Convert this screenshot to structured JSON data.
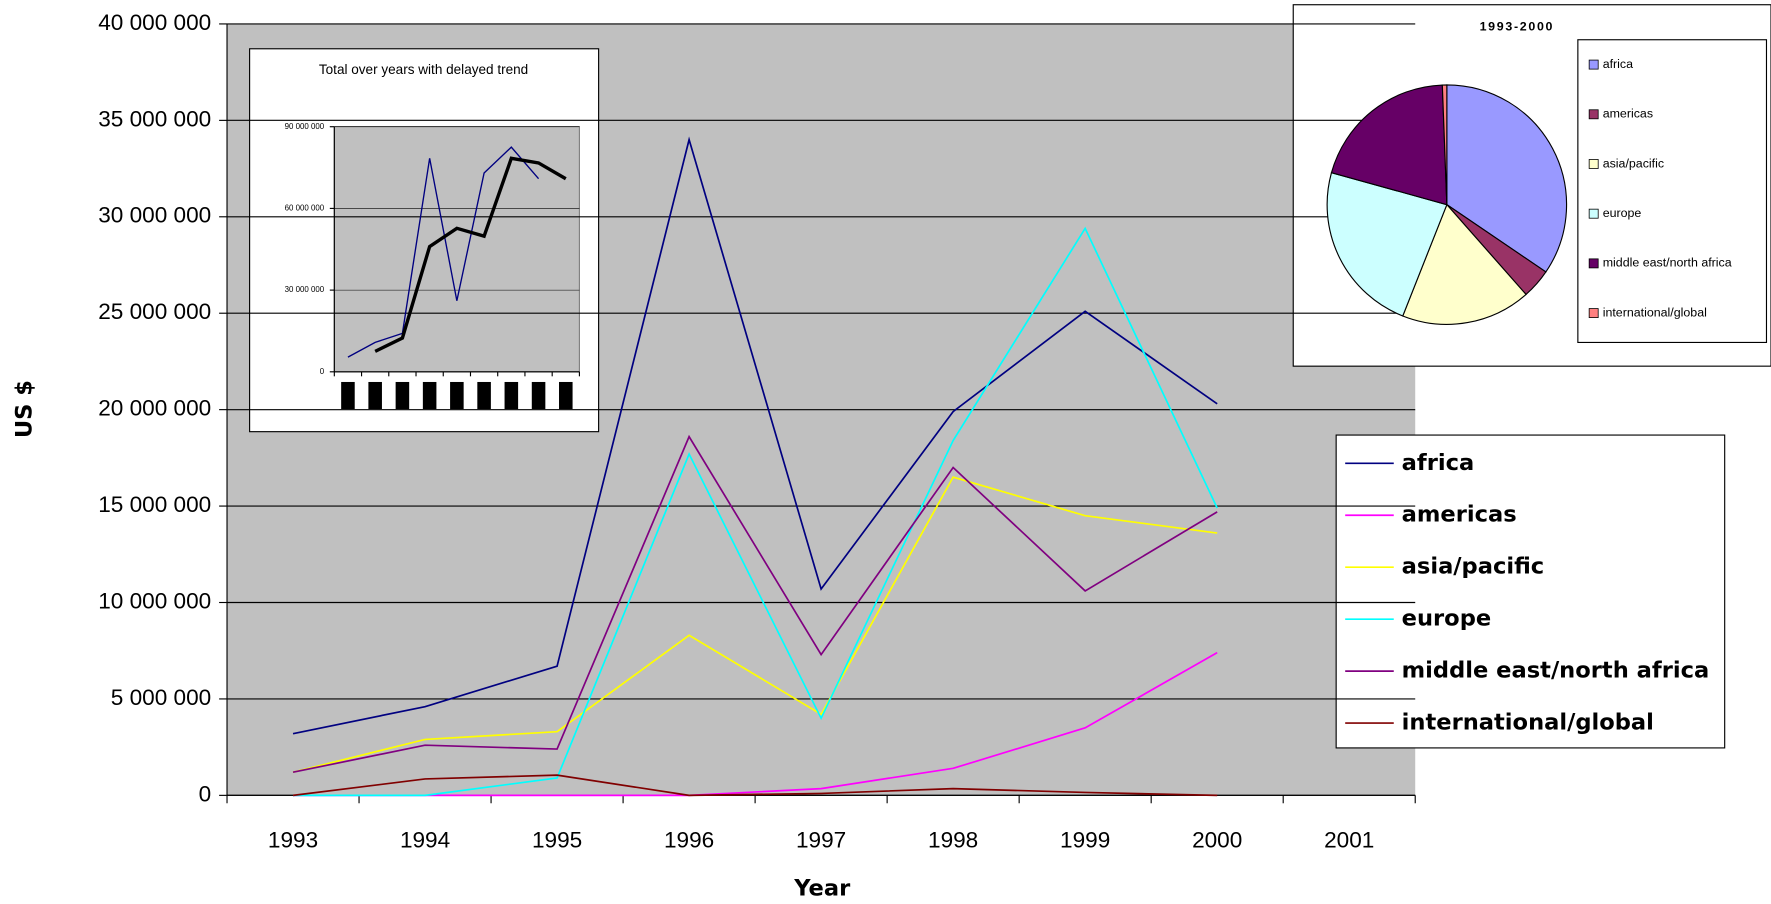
{
  "chart_data": [
    {
      "type": "line",
      "x_label": "Year",
      "y_label": "US $",
      "categories": [
        "1993",
        "1994",
        "1995",
        "1996",
        "1997",
        "1998",
        "1999",
        "2000",
        "2001"
      ],
      "ylim": [
        0,
        40000000
      ],
      "yticks": [
        {
          "value": 0,
          "label": "0"
        },
        {
          "value": 5000000,
          "label": "5 000 000"
        },
        {
          "value": 10000000,
          "label": "10 000 000"
        },
        {
          "value": 15000000,
          "label": "15 000 000"
        },
        {
          "value": 20000000,
          "label": "20 000 000"
        },
        {
          "value": 25000000,
          "label": "25 000 000"
        },
        {
          "value": 30000000,
          "label": "30 000 000"
        },
        {
          "value": 35000000,
          "label": "35 000 000"
        },
        {
          "value": 40000000,
          "label": "40 000 000"
        }
      ],
      "grid": true,
      "series": [
        {
          "name": "africa",
          "color": "#000080",
          "values": [
            3200000,
            4600000,
            6700000,
            34000000,
            10700000,
            19900000,
            25100000,
            20300000,
            null
          ]
        },
        {
          "name": "americas",
          "color": "#ff00ff",
          "values": [
            0,
            0,
            0,
            0,
            350000,
            1400000,
            3500000,
            7400000,
            null
          ]
        },
        {
          "name": "asia/pacific",
          "color": "#ffff00",
          "values": [
            1200000,
            2900000,
            3300000,
            8300000,
            4200000,
            16500000,
            14500000,
            13600000,
            null
          ]
        },
        {
          "name": "europe",
          "color": "#00ffff",
          "values": [
            0,
            0,
            900000,
            17700000,
            4000000,
            18400000,
            29400000,
            14900000,
            null
          ]
        },
        {
          "name": "middle east/north africa",
          "color": "#800080",
          "values": [
            1200000,
            2600000,
            2400000,
            18600000,
            7300000,
            17000000,
            10600000,
            14700000,
            null
          ]
        },
        {
          "name": "international/global",
          "color": "#800000",
          "values": [
            0,
            850000,
            1050000,
            0,
            100000,
            350000,
            150000,
            0,
            null
          ]
        }
      ]
    },
    {
      "type": "line",
      "title": "Total over years with delayed trend",
      "categories": [
        null,
        null,
        null,
        null,
        null,
        null,
        null,
        null,
        null
      ],
      "ylim": [
        0,
        90000000
      ],
      "yticks": [
        {
          "value": 0,
          "label": "0"
        },
        {
          "value": 30000000,
          "label": "30 000 000"
        },
        {
          "value": 60000000,
          "label": "60 000 000"
        },
        {
          "value": 90000000,
          "label": "90 000 000"
        }
      ],
      "grid": true,
      "series": [
        {
          "color": "#000080",
          "values": [
            5400000,
            10800000,
            14100000,
            78400000,
            26100000,
            73000000,
            82500000,
            70900000,
            null
          ]
        },
        {
          "color": "#000000",
          "values": [
            null,
            7500000,
            12400000,
            46000000,
            52700000,
            49800000,
            78400000,
            76700000,
            70900000
          ]
        }
      ]
    },
    {
      "type": "pie",
      "title": "1993-2000",
      "categories": [
        "africa",
        "americas",
        "asia/pacific",
        "europe",
        "middle east/north africa",
        "international/global"
      ],
      "values": [
        34.5,
        4,
        17.5,
        23.3,
        20.1,
        0.6
      ],
      "colors": [
        "#9999ff",
        "#993366",
        "#ffffcc",
        "#ccffff",
        "#660066",
        "#ff8080"
      ]
    }
  ]
}
